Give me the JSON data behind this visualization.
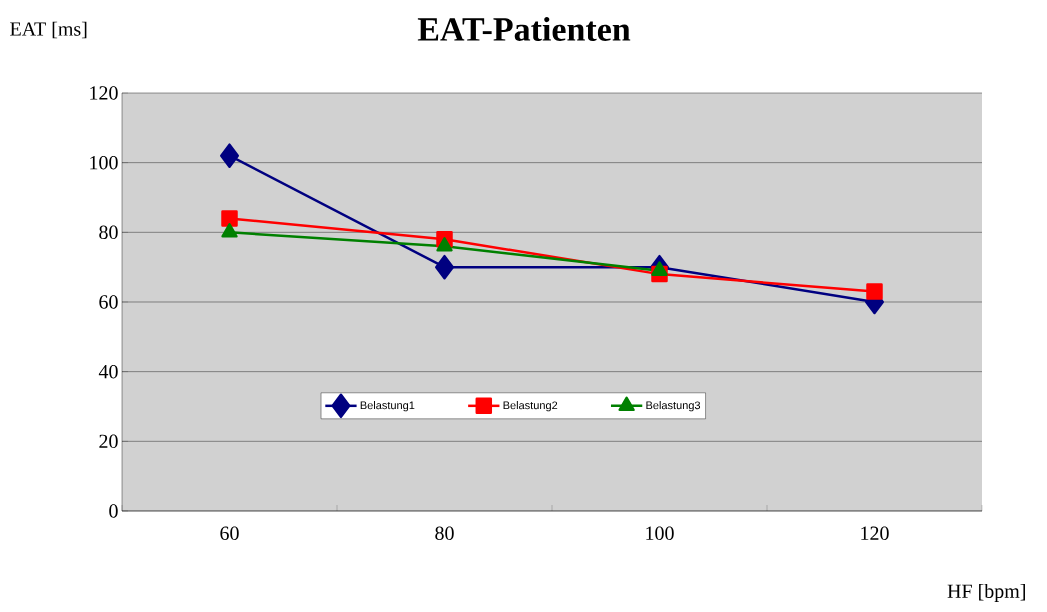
{
  "chart_data": {
    "type": "line",
    "title": "EAT-Patienten",
    "xlabel": "HF [bpm]",
    "ylabel": "EAT [ms]",
    "categories": [
      "60",
      "80",
      "100",
      "120"
    ],
    "series": [
      {
        "name": "Belastung1",
        "color": "#000080",
        "marker": "diamond",
        "values": [
          102,
          70,
          70,
          60
        ]
      },
      {
        "name": "Belastung2",
        "color": "#ff0000",
        "marker": "square",
        "values": [
          84,
          78,
          68,
          63
        ]
      },
      {
        "name": "Belastung3",
        "color": "#008000",
        "marker": "triangle",
        "values": [
          80,
          76,
          69,
          null
        ]
      }
    ],
    "ylim": [
      0,
      120
    ],
    "yticks": [
      0,
      20,
      40,
      60,
      80,
      100,
      120
    ],
    "grid": "y",
    "legend": "bottom",
    "line_style": "solid"
  }
}
